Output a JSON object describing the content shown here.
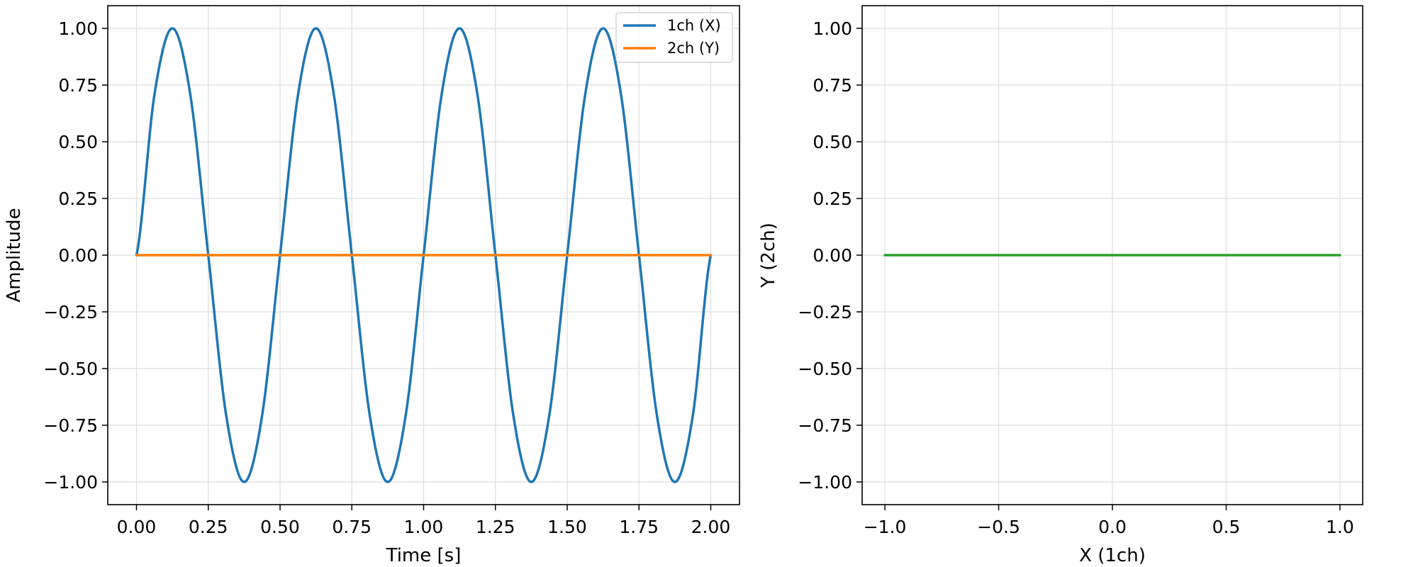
{
  "chart_data": [
    {
      "type": "line",
      "xlabel": "Time [s]",
      "ylabel": "Amplitude",
      "xlim": [
        -0.1,
        2.1
      ],
      "ylim": [
        -1.1,
        1.1
      ],
      "xticks": [
        0,
        0.25,
        0.5,
        0.75,
        1.0,
        1.25,
        1.5,
        1.75,
        2.0
      ],
      "xtick_labels": [
        "0.00",
        "0.25",
        "0.50",
        "0.75",
        "1.00",
        "1.25",
        "1.50",
        "1.75",
        "2.00"
      ],
      "yticks": [
        1.0,
        0.75,
        0.5,
        0.25,
        0.0,
        -0.25,
        -0.5,
        -0.75,
        -1.0
      ],
      "ytick_labels": [
        "1.00",
        "0.75",
        "0.50",
        "0.25",
        "0.00",
        "−0.25",
        "−0.50",
        "−0.75",
        "−1.00"
      ],
      "grid": true,
      "legend": "top-right",
      "series": [
        {
          "name": "1ch (X)",
          "color": "#1f77b4",
          "x": [
            0.0,
            0.0625,
            0.125,
            0.1875,
            0.25,
            0.3125,
            0.375,
            0.4375,
            0.5,
            0.5625,
            0.625,
            0.6875,
            0.75,
            0.8125,
            0.875,
            0.9375,
            1.0,
            1.0625,
            1.125,
            1.1875,
            1.25,
            1.3125,
            1.375,
            1.4375,
            1.5,
            1.5625,
            1.625,
            1.6875,
            1.75,
            1.8125,
            1.875,
            1.9375,
            2.0
          ],
          "y": [
            0.0,
            0.707,
            1.0,
            0.707,
            0.0,
            -0.707,
            -1.0,
            -0.707,
            0.0,
            0.707,
            1.0,
            0.707,
            0.0,
            -0.707,
            -1.0,
            -0.707,
            0.0,
            0.707,
            1.0,
            0.707,
            0.0,
            -0.707,
            -1.0,
            -0.707,
            0.0,
            0.707,
            1.0,
            0.707,
            0.0,
            -0.707,
            -1.0,
            -0.707,
            0.0
          ]
        },
        {
          "name": "2ch (Y)",
          "color": "#ff7f0e",
          "x": [
            0.0,
            2.0
          ],
          "y": [
            0.0,
            0.0
          ]
        }
      ]
    },
    {
      "type": "line",
      "xlabel": "X (1ch)",
      "ylabel": "Y (2ch)",
      "xlim": [
        -1.1,
        1.1
      ],
      "ylim": [
        -1.1,
        1.1
      ],
      "xticks": [
        -1.0,
        -0.5,
        0.0,
        0.5,
        1.0
      ],
      "xtick_labels": [
        "−1.0",
        "−0.5",
        "0.0",
        "0.5",
        "1.0"
      ],
      "yticks": [
        1.0,
        0.75,
        0.5,
        0.25,
        0.0,
        -0.25,
        -0.5,
        -0.75,
        -1.0
      ],
      "ytick_labels": [
        "1.00",
        "0.75",
        "0.50",
        "0.25",
        "0.00",
        "−0.25",
        "−0.50",
        "−0.75",
        "−1.00"
      ],
      "grid": true,
      "series": [
        {
          "color": "#2ca02c",
          "x": [
            -1.0,
            1.0
          ],
          "y": [
            0.0,
            0.0
          ]
        }
      ]
    }
  ]
}
